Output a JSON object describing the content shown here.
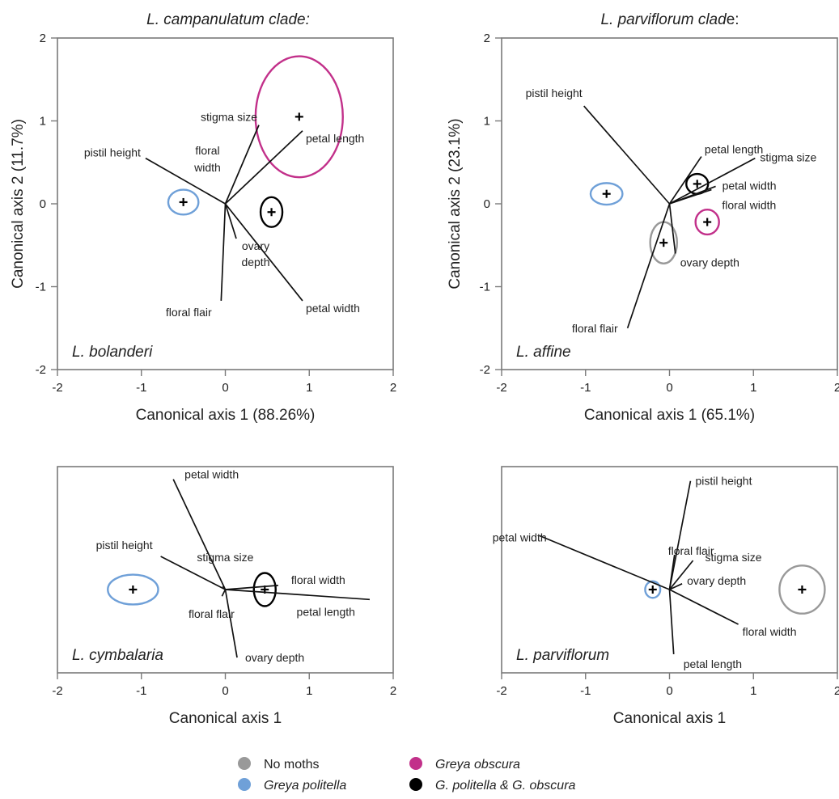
{
  "colors": {
    "no_moths": "#999999",
    "greya_politella": "#6fa0d8",
    "greya_obscura": "#c2308a",
    "both": "#000000"
  },
  "headings": {
    "left": "L. campanulatum clade:",
    "right_main": "L. parviflorum clad",
    "right_tail": "e:"
  },
  "legend": {
    "items": [
      {
        "label": "No moths",
        "color": "#999999",
        "italic": false
      },
      {
        "label": "Greya politella",
        "color": "#6fa0d8",
        "italic": true
      },
      {
        "label": "Greya obscura",
        "color": "#c2308a",
        "italic": true
      },
      {
        "label": "G. politella & G. obscura",
        "color": "#000000",
        "italic": true
      }
    ]
  },
  "chart_data": [
    {
      "type": "scatter",
      "species": "L. bolanderi",
      "xlabel": "Canonical axis 1 (88.26%)",
      "ylabel": "Canonical axis 2 (11.7%)",
      "xlim": [
        -2,
        2
      ],
      "ylim": [
        -2,
        2
      ],
      "xticks": [
        "-2",
        "-1",
        "0",
        "1",
        "2"
      ],
      "yticks": [
        "-2",
        "-1",
        "0",
        "1",
        "2"
      ],
      "groups": [
        {
          "group": "Greya politella",
          "x": -0.5,
          "y": 0.02,
          "rx": 0.18,
          "ry": 0.15
        },
        {
          "group": "Greya obscura",
          "x": 0.88,
          "y": 1.05,
          "rx": 0.52,
          "ry": 0.73
        },
        {
          "group": "G. politella & G. obscura",
          "x": 0.55,
          "y": -0.1,
          "rx": 0.13,
          "ry": 0.18
        }
      ],
      "vectors": [
        {
          "label": "stigma size",
          "x": 0.4,
          "y": 0.95
        },
        {
          "label": "petal length",
          "x": 0.92,
          "y": 0.88
        },
        {
          "label": "pistil height",
          "x": -0.95,
          "y": 0.55
        },
        {
          "label": "floral width",
          "x": 0.0,
          "y": 0.01
        },
        {
          "label": "ovary depth",
          "x": 0.13,
          "y": -0.42
        },
        {
          "label": "floral flair",
          "x": -0.05,
          "y": -1.17
        },
        {
          "label": "petal width",
          "x": 0.92,
          "y": -1.17
        }
      ]
    },
    {
      "type": "scatter",
      "species": "L. affine",
      "xlabel": "Canonical axis 1 (65.1%)",
      "ylabel": "Canonical axis 2 (23.1%)",
      "xlim": [
        -2,
        2
      ],
      "ylim": [
        -2,
        2
      ],
      "xticks": [
        "-2",
        "-1",
        "0",
        "1",
        "2"
      ],
      "yticks": [
        "-2",
        "-1",
        "0",
        "1",
        "2"
      ],
      "groups": [
        {
          "group": "Greya politella",
          "x": -0.75,
          "y": 0.12,
          "rx": 0.19,
          "ry": 0.13
        },
        {
          "group": "No moths",
          "x": -0.07,
          "y": -0.47,
          "rx": 0.16,
          "ry": 0.25
        },
        {
          "group": "Greya obscura",
          "x": 0.45,
          "y": -0.22,
          "rx": 0.14,
          "ry": 0.15
        },
        {
          "group": "G. politella & G. obscura",
          "x": 0.33,
          "y": 0.24,
          "rx": 0.13,
          "ry": 0.12
        }
      ],
      "vectors": [
        {
          "label": "pistil height",
          "x": -1.02,
          "y": 1.18
        },
        {
          "label": "petal length",
          "x": 0.38,
          "y": 0.57
        },
        {
          "label": "stigma size",
          "x": 1.02,
          "y": 0.55
        },
        {
          "label": "petal width",
          "x": 0.55,
          "y": 0.21
        },
        {
          "label": "floral width",
          "x": 0.5,
          "y": 0.17
        },
        {
          "label": "ovary depth",
          "x": 0.07,
          "y": -0.6
        },
        {
          "label": "floral flair",
          "x": -0.5,
          "y": -1.5
        }
      ]
    },
    {
      "type": "scatter",
      "species": "L. cymbalaria",
      "xlabel": "Canonical axis 1",
      "ylabel": "",
      "xlim": [
        -2,
        2
      ],
      "xticks": [
        "-2",
        "-1",
        "0",
        "1",
        "2"
      ],
      "groups": [
        {
          "group": "Greya politella",
          "x": -1.1,
          "y": 0.0,
          "rx": 0.3,
          "ry": 0.18
        },
        {
          "group": "G. politella & G. obscura",
          "x": 0.47,
          "y": 0.0,
          "rx": 0.13,
          "ry": 0.2
        }
      ],
      "vectors": [
        {
          "label": "petal width",
          "x": -0.62,
          "y": 1.33
        },
        {
          "label": "pistil height",
          "x": -0.77,
          "y": 0.4
        },
        {
          "label": "stigma size",
          "x": -0.03,
          "y": 0.04
        },
        {
          "label": "floral width",
          "x": 0.63,
          "y": 0.05
        },
        {
          "label": "petal length",
          "x": 1.72,
          "y": -0.12
        },
        {
          "label": "floral flair",
          "x": -0.04,
          "y": -0.08
        },
        {
          "label": "ovary depth",
          "x": 0.14,
          "y": -0.82
        }
      ]
    },
    {
      "type": "scatter",
      "species": "L. parviflorum",
      "xlabel": "Canonical axis 1",
      "ylabel": "",
      "xlim": [
        -2,
        2
      ],
      "xticks": [
        "-2",
        "-1",
        "0",
        "1",
        "2"
      ],
      "groups": [
        {
          "group": "Greya politella",
          "x": -0.2,
          "y": 0.0,
          "rx": 0.09,
          "ry": 0.1
        },
        {
          "group": "No moths",
          "x": 1.58,
          "y": 0.0,
          "rx": 0.27,
          "ry": 0.29
        }
      ],
      "vectors": [
        {
          "label": "pistil height",
          "x": 0.25,
          "y": 1.31
        },
        {
          "label": "petal width",
          "x": -1.55,
          "y": 0.65
        },
        {
          "label": "floral flair",
          "x": 0.06,
          "y": 0.42
        },
        {
          "label": "stigma size",
          "x": 0.28,
          "y": 0.35
        },
        {
          "label": "ovary depth",
          "x": 0.15,
          "y": 0.07
        },
        {
          "label": "floral width",
          "x": 0.82,
          "y": -0.42
        },
        {
          "label": "petal length",
          "x": 0.05,
          "y": -0.78
        }
      ]
    }
  ]
}
